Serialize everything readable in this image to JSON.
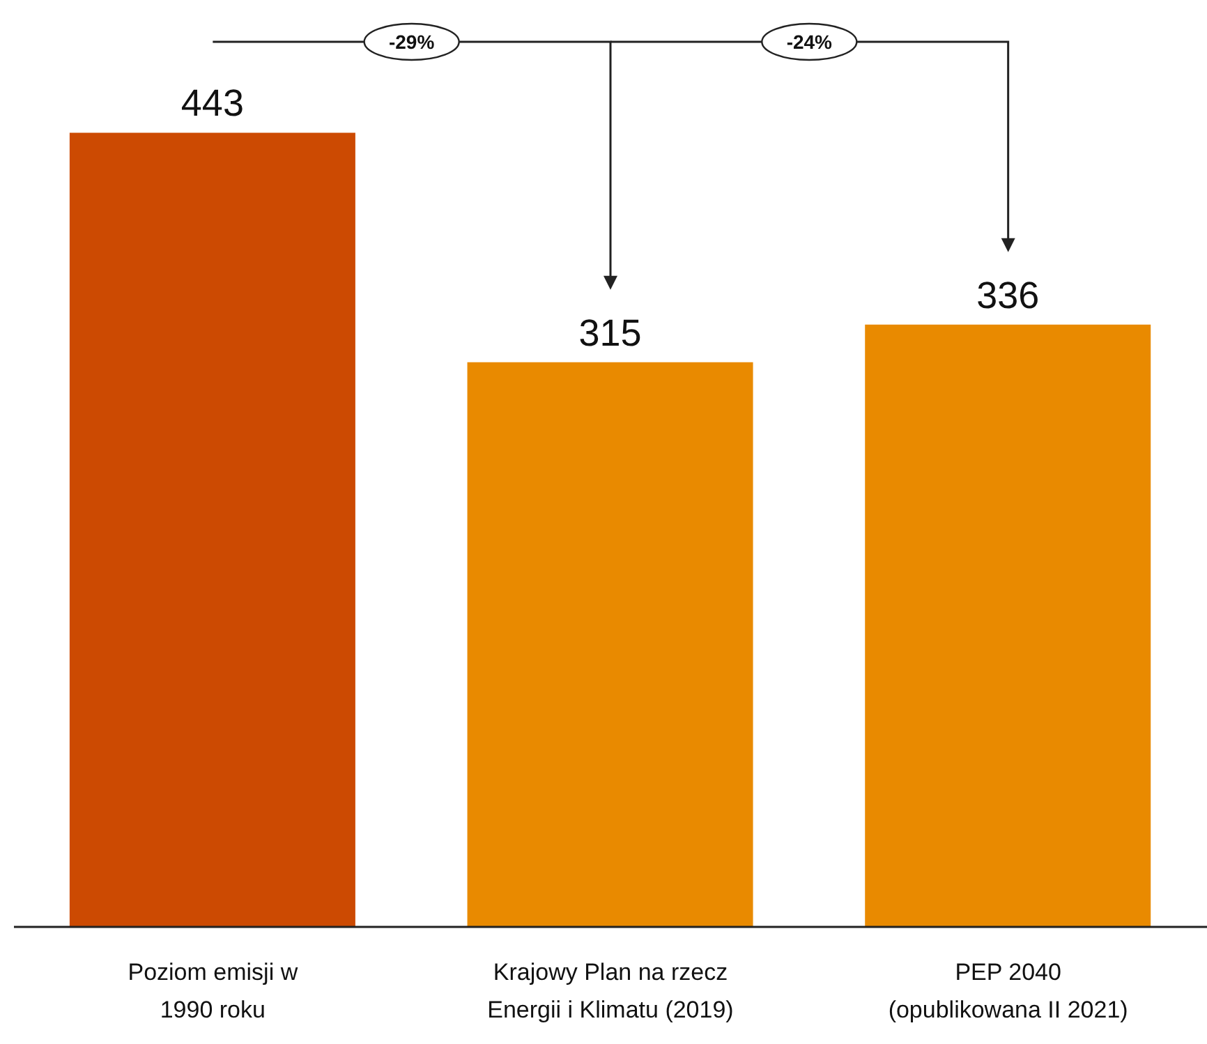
{
  "chart_data": {
    "type": "bar",
    "categories": [
      "Poziom emisji w\n1990 roku",
      "Krajowy Plan na rzecz\nEnergii i Klimatu (2019)",
      "PEP 2040\n(opublikowana II 2021)"
    ],
    "values": [
      443,
      315,
      336
    ],
    "colors": [
      "#cc4a02",
      "#e98a00",
      "#e98a00"
    ],
    "data_labels": true,
    "annotations": [
      "-29%",
      "-24%"
    ]
  }
}
